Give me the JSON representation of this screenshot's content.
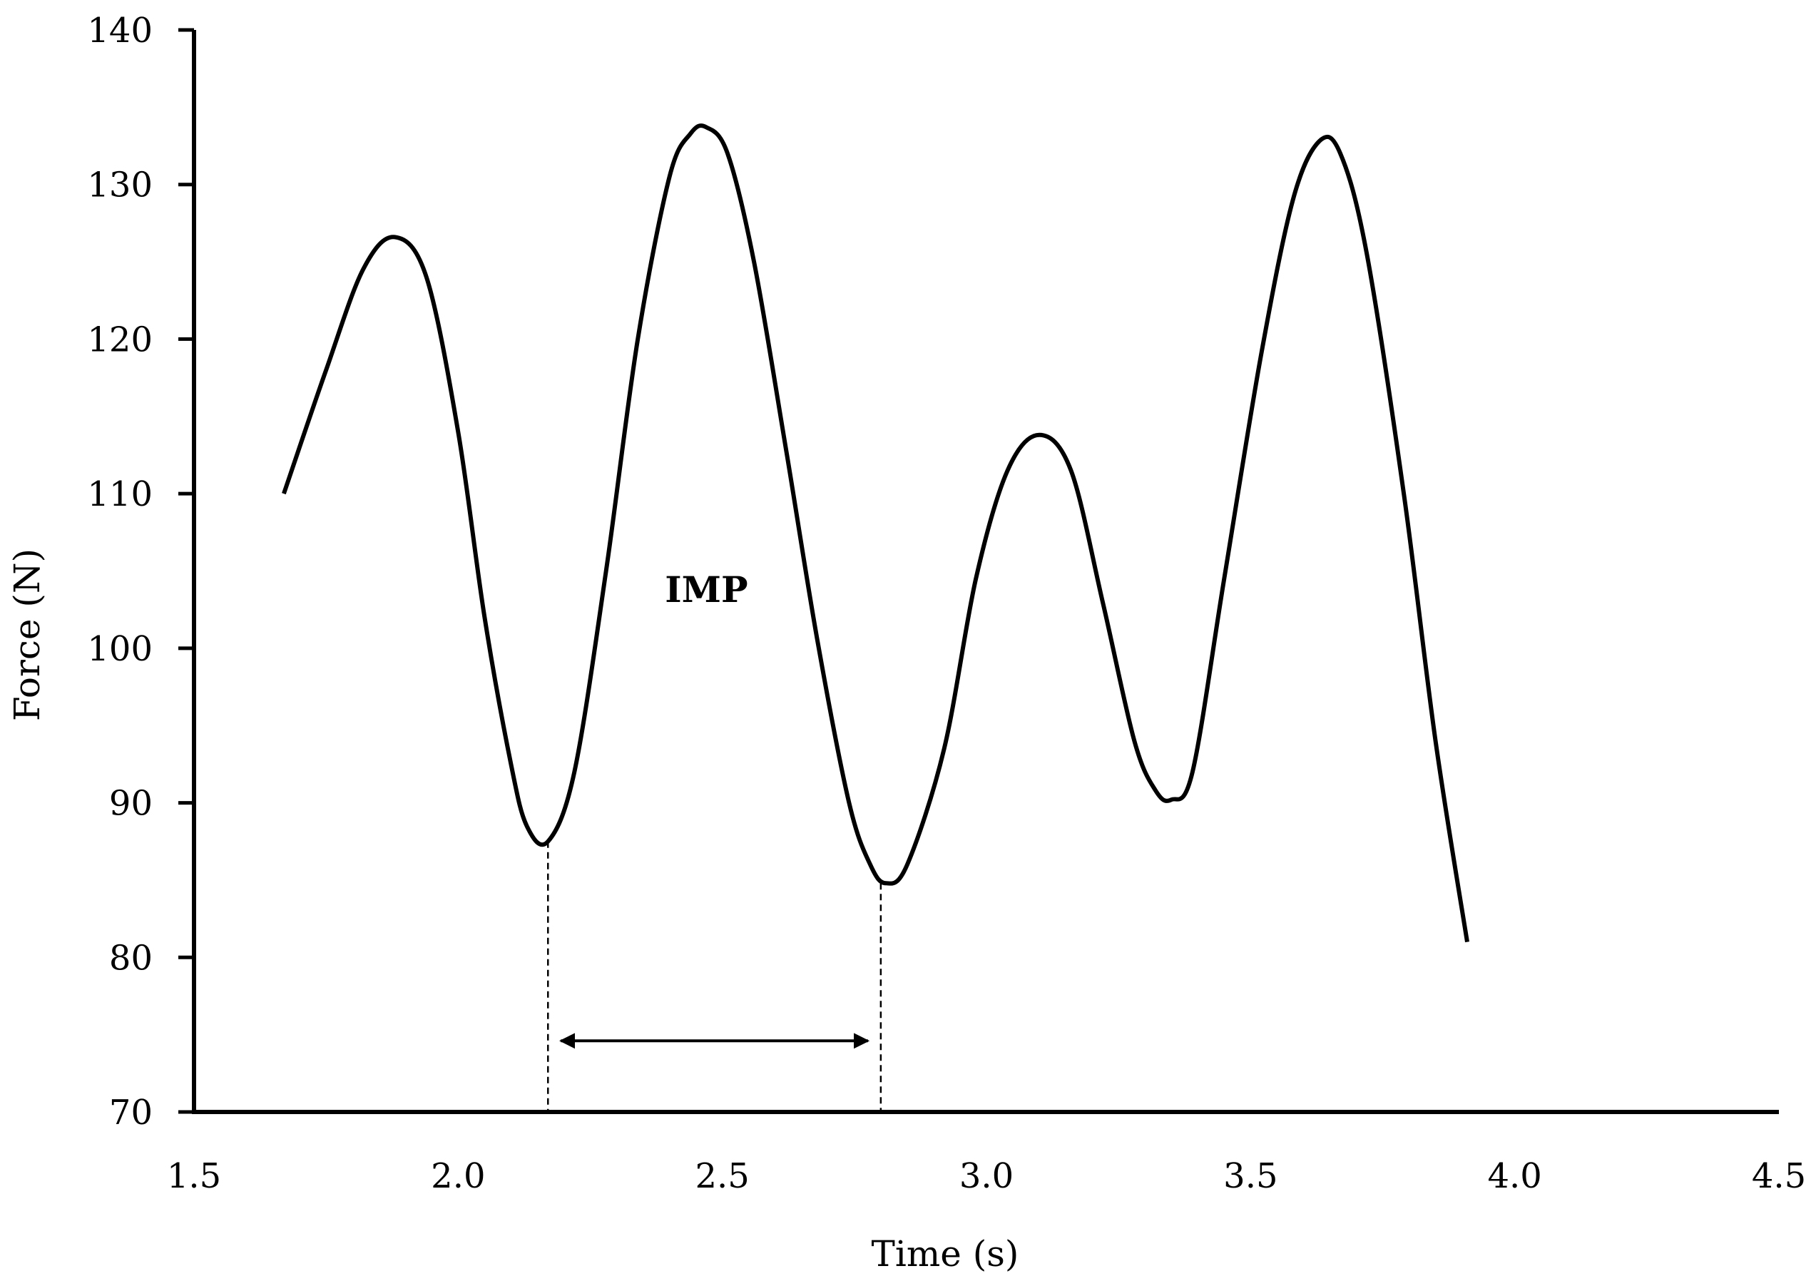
{
  "chart_data": {
    "type": "line",
    "title": "",
    "xlabel": "Time (s)",
    "ylabel": "Force (N)",
    "xlim": [
      1.5,
      4.5
    ],
    "ylim": [
      70,
      140
    ],
    "xticks": [
      "1.5",
      "2.0",
      "2.5",
      "3.0",
      "3.5",
      "4.0",
      "4.5"
    ],
    "yticks": [
      "70",
      "80",
      "90",
      "100",
      "110",
      "120",
      "130",
      "140"
    ],
    "grid": false,
    "legend": "none",
    "series": [
      {
        "color": "#000000",
        "x": [
          1.67,
          1.75,
          1.82,
          1.88,
          1.94,
          2.0,
          2.05,
          2.1,
          2.13,
          2.17,
          2.22,
          2.28,
          2.34,
          2.4,
          2.44,
          2.47,
          2.51,
          2.56,
          2.62,
          2.68,
          2.74,
          2.78,
          2.81,
          2.85,
          2.92,
          2.98,
          3.04,
          3.1,
          3.16,
          3.22,
          3.28,
          3.32,
          3.35,
          3.39,
          3.45,
          3.52,
          3.58,
          3.63,
          3.67,
          3.72,
          3.79,
          3.85,
          3.91
        ],
        "y": [
          110,
          118,
          124.5,
          126.6,
          124,
          114,
          102,
          92.5,
          88.5,
          87.5,
          92,
          105,
          120,
          130.5,
          133.3,
          133.7,
          132,
          125,
          113,
          100.5,
          90,
          86,
          84.8,
          86,
          93.5,
          104.5,
          111.5,
          113.8,
          111.5,
          103,
          94,
          90.8,
          90.2,
          92,
          104.5,
          119,
          129,
          132.8,
          132,
          125.5,
          110,
          94,
          81
        ]
      }
    ],
    "annotations": [
      {
        "text": "IMP",
        "x": 2.47,
        "y": 103
      },
      {
        "type": "dashed-vline",
        "x": 2.17,
        "y_from": 70,
        "y_to": 87.5
      },
      {
        "type": "dashed-vline",
        "x": 2.8,
        "y_from": 70,
        "y_to": 84.8
      },
      {
        "type": "double-arrow",
        "x_from": 2.17,
        "x_to": 2.8,
        "y": 74.6
      }
    ]
  }
}
